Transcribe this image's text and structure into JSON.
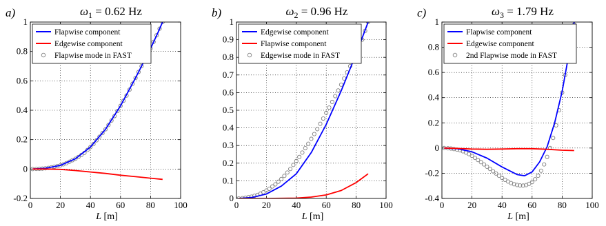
{
  "chart_data": [
    {
      "type": "line",
      "panel_label": "a)",
      "title": "ω1 = 0.62 Hz",
      "title_symbol": "ω",
      "title_subscript": "1",
      "title_rest": " = 0.62 Hz",
      "xlabel_var": "L",
      "xlabel_unit": " [m]",
      "xlim": [
        0,
        100
      ],
      "ylim": [
        -0.2,
        1
      ],
      "xticks": [
        "0",
        "20",
        "40",
        "60",
        "80",
        "100"
      ],
      "yticks": [
        "-0.2",
        "0",
        "0.2",
        "0.4",
        "0.6",
        "0.8",
        "1"
      ],
      "grid": "dotted",
      "legend_position": "top-left",
      "series": [
        {
          "name": "Flapwise component",
          "style": "line",
          "color": "#0000ff",
          "x": [
            1.5,
            10,
            20,
            30,
            40,
            50,
            60,
            70,
            80,
            85,
            88
          ],
          "y": [
            0,
            0.005,
            0.025,
            0.07,
            0.15,
            0.27,
            0.43,
            0.62,
            0.82,
            0.93,
            1.0
          ]
        },
        {
          "name": "Edgewise component",
          "style": "line",
          "color": "#ff0000",
          "x": [
            1.5,
            10,
            20,
            30,
            40,
            50,
            60,
            70,
            80,
            88
          ],
          "y": [
            0,
            0,
            -0.002,
            -0.01,
            -0.02,
            -0.03,
            -0.042,
            -0.052,
            -0.062,
            -0.07
          ]
        },
        {
          "name": "Flapwise mode in FAST",
          "style": "markers",
          "color": "#808080",
          "x": [
            1.5,
            4,
            6,
            8,
            10,
            12,
            14,
            16,
            18,
            20,
            22,
            24,
            26,
            28,
            30,
            32,
            34,
            36,
            38,
            40,
            42,
            44,
            46,
            48,
            50,
            52,
            54,
            56,
            58,
            60,
            62,
            64,
            66,
            68,
            70,
            72,
            74,
            76,
            78,
            80,
            82,
            84,
            86,
            88
          ],
          "y": [
            0,
            0.001,
            0.002,
            0.003,
            0.005,
            0.008,
            0.012,
            0.016,
            0.02,
            0.025,
            0.032,
            0.04,
            0.05,
            0.06,
            0.07,
            0.082,
            0.096,
            0.11,
            0.13,
            0.15,
            0.17,
            0.195,
            0.22,
            0.245,
            0.27,
            0.3,
            0.33,
            0.36,
            0.395,
            0.43,
            0.465,
            0.5,
            0.54,
            0.58,
            0.62,
            0.66,
            0.7,
            0.74,
            0.78,
            0.82,
            0.865,
            0.91,
            0.955,
            1.0
          ]
        }
      ]
    },
    {
      "type": "line",
      "panel_label": "b)",
      "title": "ω2 = 0.96 Hz",
      "title_symbol": "ω",
      "title_subscript": "2",
      "title_rest": " = 0.96 Hz",
      "xlabel_var": "L",
      "xlabel_unit": " [m]",
      "xlim": [
        0,
        100
      ],
      "ylim": [
        0,
        1
      ],
      "xticks": [
        "0",
        "20",
        "40",
        "60",
        "80",
        "100"
      ],
      "yticks": [
        "0",
        "0.1",
        "0.2",
        "0.3",
        "0.4",
        "0.5",
        "0.6",
        "0.7",
        "0.8",
        "0.9",
        "1"
      ],
      "grid": "dotted",
      "legend_position": "top-left",
      "series": [
        {
          "name": "Edgewise component",
          "style": "line",
          "color": "#0000ff",
          "x": [
            1.5,
            10,
            20,
            30,
            40,
            50,
            60,
            70,
            80,
            88
          ],
          "y": [
            0,
            0.005,
            0.025,
            0.07,
            0.14,
            0.26,
            0.42,
            0.61,
            0.82,
            1.0
          ]
        },
        {
          "name": "Flapwise component",
          "style": "line",
          "color": "#ff0000",
          "x": [
            1.5,
            20,
            40,
            50,
            60,
            70,
            80,
            88
          ],
          "y": [
            0,
            0,
            0.002,
            0.008,
            0.02,
            0.045,
            0.09,
            0.14
          ]
        },
        {
          "name": "Edgewise mode in FAST",
          "style": "markers",
          "color": "#808080",
          "x": [
            1.5,
            4,
            6,
            8,
            10,
            12,
            14,
            16,
            18,
            20,
            22,
            24,
            26,
            28,
            30,
            32,
            34,
            36,
            38,
            40,
            42,
            44,
            46,
            48,
            50,
            52,
            54,
            56,
            58,
            60,
            62,
            64,
            66,
            68,
            70,
            72,
            74,
            76,
            78,
            80,
            82,
            84,
            86,
            88
          ],
          "y": [
            0,
            0.002,
            0.004,
            0.007,
            0.01,
            0.015,
            0.02,
            0.027,
            0.035,
            0.045,
            0.055,
            0.068,
            0.08,
            0.095,
            0.11,
            0.128,
            0.147,
            0.167,
            0.19,
            0.212,
            0.235,
            0.26,
            0.285,
            0.31,
            0.338,
            0.365,
            0.393,
            0.423,
            0.453,
            0.485,
            0.515,
            0.547,
            0.58,
            0.612,
            0.645,
            0.68,
            0.715,
            0.75,
            0.785,
            0.82,
            0.86,
            0.9,
            0.95,
            1.0
          ]
        }
      ]
    },
    {
      "type": "line",
      "panel_label": "c)",
      "title": "ω3 = 1.79 Hz",
      "title_symbol": "ω",
      "title_subscript": "3",
      "title_rest": " = 1.79 Hz",
      "xlabel_var": "L",
      "xlabel_unit": " [m]",
      "xlim": [
        0,
        100
      ],
      "ylim": [
        -0.4,
        1
      ],
      "xticks": [
        "0",
        "20",
        "40",
        "60",
        "80",
        "100"
      ],
      "yticks": [
        "-0.4",
        "-0.2",
        "0",
        "0.2",
        "0.4",
        "0.6",
        "0.8",
        "1"
      ],
      "grid": "dotted",
      "legend_position": "top-left",
      "series": [
        {
          "name": "Flapwise component",
          "style": "line",
          "color": "#0000ff",
          "x": [
            1.5,
            10,
            20,
            30,
            40,
            50,
            55,
            60,
            65,
            70,
            75,
            80,
            85,
            88
          ],
          "y": [
            0,
            -0.005,
            -0.03,
            -0.08,
            -0.15,
            -0.21,
            -0.22,
            -0.19,
            -0.11,
            0.01,
            0.2,
            0.45,
            0.78,
            1.0
          ]
        },
        {
          "name": "Edgewise component",
          "style": "line",
          "color": "#ff0000",
          "x": [
            1.5,
            10,
            20,
            30,
            40,
            50,
            60,
            70,
            80,
            88
          ],
          "y": [
            0,
            -0.003,
            -0.008,
            -0.01,
            -0.008,
            -0.005,
            -0.005,
            -0.01,
            -0.017,
            -0.02
          ]
        },
        {
          "name": "2nd Flapwise mode in FAST",
          "style": "markers",
          "color": "#808080",
          "x": [
            1.5,
            4,
            6,
            8,
            10,
            12,
            14,
            16,
            18,
            20,
            22,
            24,
            26,
            28,
            30,
            32,
            34,
            36,
            38,
            40,
            42,
            44,
            46,
            48,
            50,
            52,
            54,
            56,
            58,
            60,
            62,
            64,
            66,
            68,
            70,
            72,
            74,
            76,
            78,
            80,
            82,
            84,
            86,
            88
          ],
          "y": [
            0,
            -0.002,
            -0.004,
            -0.008,
            -0.012,
            -0.018,
            -0.026,
            -0.036,
            -0.048,
            -0.062,
            -0.078,
            -0.095,
            -0.112,
            -0.13,
            -0.148,
            -0.166,
            -0.184,
            -0.202,
            -0.22,
            -0.237,
            -0.252,
            -0.266,
            -0.278,
            -0.287,
            -0.293,
            -0.297,
            -0.298,
            -0.294,
            -0.284,
            -0.27,
            -0.248,
            -0.22,
            -0.18,
            -0.13,
            -0.07,
            0.0,
            0.08,
            0.18,
            0.3,
            0.44,
            0.58,
            0.72,
            0.86,
            0.98
          ]
        }
      ]
    }
  ]
}
